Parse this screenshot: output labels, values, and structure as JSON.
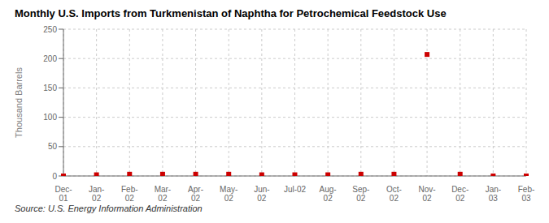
{
  "chart_data": {
    "type": "scatter",
    "title": "Monthly U.S. Imports from Turkmenistan of Naphtha for Petrochemical Feedstock Use",
    "y_label": "Thousand Barrels",
    "annotations": [
      "Source: U.S. Energy Information Administration"
    ],
    "categories": [
      "Dec-\n01",
      "Jan-\n02",
      "Feb-\n02",
      "Mar-\n02",
      "Apr-\n02",
      "May-\n02",
      "Jun-\n02",
      "Jul-02",
      "Aug-\n02",
      "Sep-\n02",
      "Oct-\n02",
      "Nov-\n02",
      "Dec-\n02",
      "Jan-\n03",
      "Feb-\n03"
    ],
    "values": [
      0,
      2,
      3,
      3,
      3,
      3,
      2,
      2,
      2,
      3,
      3,
      207,
      3,
      0,
      0
    ],
    "color": "#cc0000",
    "marker": "square",
    "ylim": [
      0,
      250
    ],
    "yticks": [
      0,
      50,
      100,
      150,
      200,
      250
    ],
    "grid": true
  }
}
